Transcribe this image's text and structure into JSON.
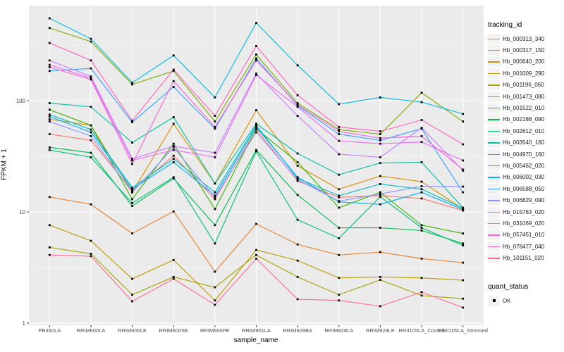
{
  "colors": {
    "panel_bg": "#EBEBEB",
    "grid": "#FFFFFF",
    "axis_text": "#4D4D4D",
    "tick_mark": "#333333",
    "point": "#000000",
    "legend_key_bg": "#F2F2F2"
  },
  "chart_data": {
    "type": "line",
    "title": "",
    "xlabel": "sample_name",
    "ylabel": "FPKM + 1",
    "y_scale": "log10",
    "y_ticks": [
      1,
      10,
      100
    ],
    "y_minor_ticks": [
      3.162,
      31.62,
      316.2
    ],
    "ylim": [
      1,
      715
    ],
    "grid": true,
    "legend_position": "right",
    "legend_title": "tracking_id",
    "point_marker": "black-square",
    "x_categories": [
      "PB350LA",
      "RRIM600LA",
      "RRIM600LE",
      "RRIM600SE",
      "RRIM600PE",
      "RRIM901LA",
      "RRIM928BA",
      "RRIM928LA",
      "RRIM928LE",
      "RRII105LA_Control",
      "RRII105LA_Stressed"
    ],
    "series": [
      {
        "name": "Hb_000313_340",
        "color": "#F8766D",
        "values": [
          50,
          44,
          15.5,
          32,
          13,
          55,
          19,
          13.5,
          14,
          13.2,
          10.3
        ]
      },
      {
        "name": "Hb_000317_150",
        "color": "#EA8331",
        "values": [
          13.6,
          11.7,
          6.4,
          10.1,
          2.9,
          7.8,
          5.1,
          4.1,
          4.35,
          3.8,
          3.5
        ]
      },
      {
        "name": "Hb_000640_200",
        "color": "#D89000",
        "values": [
          68,
          60,
          15,
          62,
          18,
          82,
          26,
          16,
          21,
          18.7,
          10.6
        ]
      },
      {
        "name": "Hb_001009_290",
        "color": "#C09B00",
        "values": [
          7.6,
          5.5,
          2.5,
          3.7,
          1.6,
          4.55,
          3.65,
          2.55,
          2.6,
          2.55,
          2.43
        ]
      },
      {
        "name": "Hb_001196_060",
        "color": "#A3A500",
        "values": [
          4.8,
          4.2,
          1.8,
          2.6,
          2.1,
          4.1,
          2.6,
          1.8,
          2.45,
          1.77,
          1.66
        ]
      },
      {
        "name": "Hb_001473_080",
        "color": "#7CAE00",
        "values": [
          450,
          340,
          140,
          185,
          65,
          260,
          95,
          55,
          50,
          118,
          65
        ]
      },
      {
        "name": "Hb_001522_010",
        "color": "#39B600",
        "values": [
          83,
          60,
          13,
          41,
          10.6,
          56,
          28,
          10.9,
          15,
          7.6,
          6.4
        ]
      },
      {
        "name": "Hb_002188_090",
        "color": "#00BB4E",
        "values": [
          38,
          34,
          11.3,
          20,
          7.6,
          36,
          14.2,
          7.2,
          7.2,
          6.8,
          5.2
        ]
      },
      {
        "name": "Hb_002612_010",
        "color": "#00BF7D",
        "values": [
          36,
          31,
          12,
          20.5,
          5.2,
          35,
          8.5,
          5.8,
          13.7,
          7.2,
          5.0
        ]
      },
      {
        "name": "Hb_003540_160",
        "color": "#00C1A3",
        "values": [
          95,
          88,
          42,
          71,
          18,
          62,
          33.5,
          21.6,
          27.5,
          28,
          10.9
        ]
      },
      {
        "name": "Hb_004970_160",
        "color": "#00BFC4",
        "values": [
          75,
          55,
          16.5,
          30,
          15,
          60,
          20,
          14,
          17.8,
          16,
          10.8
        ]
      },
      {
        "name": "Hb_005462_020",
        "color": "#00BAE0",
        "values": [
          550,
          360,
          145,
          255,
          107,
          500,
          208,
          93,
          107,
          97,
          76
        ]
      },
      {
        "name": "Hb_006002_030",
        "color": "#00B0F6",
        "values": [
          72,
          52,
          16,
          28,
          14,
          58,
          20.5,
          12.3,
          11.7,
          15,
          10.5
        ]
      },
      {
        "name": "Hb_006588_050",
        "color": "#35A2FF",
        "values": [
          185,
          195,
          64,
          133,
          56,
          240,
          90,
          50,
          44,
          56,
          15
        ]
      },
      {
        "name": "Hb_006829_090",
        "color": "#9590FF",
        "values": [
          65,
          48,
          15,
          38,
          13.5,
          52,
          19.5,
          12.5,
          14.5,
          17,
          16.9
        ]
      },
      {
        "name": "Hb_015763_020",
        "color": "#C77CFF",
        "values": [
          230,
          165,
          30,
          39,
          34,
          175,
          73,
          33,
          31,
          57,
          23.5
        ]
      },
      {
        "name": "Hb_031069_020",
        "color": "#E76BF3",
        "values": [
          210,
          160,
          29,
          36,
          31,
          170,
          88,
          43.5,
          41,
          42.5,
          29
        ]
      },
      {
        "name": "Hb_057451_010",
        "color": "#FA62DB",
        "values": [
          200,
          155,
          27,
          150,
          58,
          230,
          92,
          53,
          46,
          48,
          24
        ]
      },
      {
        "name": "Hb_078477_040",
        "color": "#FF62BC",
        "values": [
          330,
          230,
          66,
          190,
          73,
          310,
          112,
          58,
          53,
          67,
          40.5
        ]
      },
      {
        "name": "Hb_101151_020",
        "color": "#FF6A98",
        "values": [
          4.1,
          4.0,
          1.57,
          2.5,
          1.46,
          3.8,
          1.64,
          1.6,
          1.42,
          1.9,
          1.38
        ]
      }
    ],
    "legend2": {
      "title": "quant_status",
      "items": [
        {
          "label": "OK",
          "marker": "black-square"
        }
      ]
    }
  }
}
